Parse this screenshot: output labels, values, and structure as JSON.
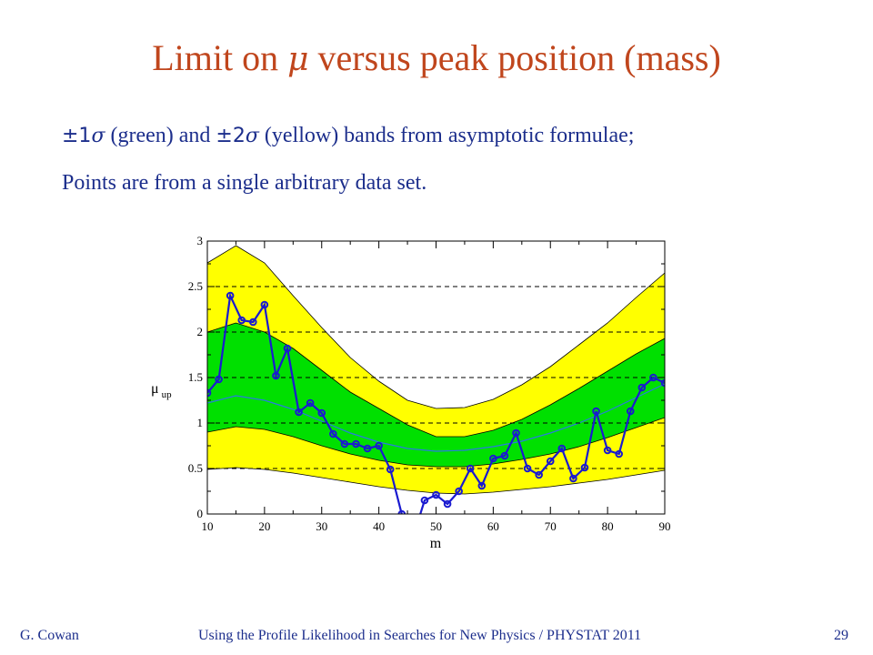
{
  "slide": {
    "title_pre": "Limit on ",
    "title_mu": "μ",
    "title_post": " versus peak position (mass)",
    "line1": {
      "pm1": "±1",
      "sigma1": "σ",
      "mid": " (green) and ",
      "pm2": "±2",
      "sigma2": "σ",
      "post": " (yellow) bands from asymptotic formulae;"
    },
    "line2": "Points are from a single arbitrary data set.",
    "footer_author": "G. Cowan",
    "footer_talk": "Using the Profile Likelihood in Searches for New Physics / PHYSTAT 2011",
    "page_number": "29"
  },
  "colors": {
    "yellow_band": "#ffff00",
    "green_band": "#00e000",
    "median_line": "#2a7ae0",
    "points": "#1a1ad0",
    "title": "#c0461d",
    "text": "#1c2e8c"
  },
  "chart_data": {
    "type": "line",
    "xlabel": "m",
    "ylabel": "μ",
    "ylabel_sub": "up",
    "xlim": [
      10,
      90
    ],
    "ylim": [
      0,
      3
    ],
    "x_ticks": [
      10,
      20,
      30,
      40,
      50,
      60,
      70,
      80,
      90
    ],
    "y_ticks": [
      0,
      0.5,
      1,
      1.5,
      2,
      2.5,
      3
    ],
    "y_tick_labels": [
      "0",
      "0.5",
      "1",
      "1.5",
      "2",
      "2.5",
      "3"
    ],
    "grid": "dashed horizontal lines at major y ticks",
    "bands": {
      "x": [
        10,
        15,
        20,
        25,
        30,
        35,
        40,
        45,
        50,
        55,
        60,
        65,
        70,
        75,
        80,
        85,
        90
      ],
      "minus2": [
        0.49,
        0.51,
        0.49,
        0.45,
        0.4,
        0.35,
        0.3,
        0.26,
        0.23,
        0.22,
        0.24,
        0.27,
        0.3,
        0.34,
        0.38,
        0.43,
        0.48
      ],
      "minus1": [
        0.9,
        0.96,
        0.93,
        0.85,
        0.75,
        0.66,
        0.59,
        0.54,
        0.52,
        0.52,
        0.55,
        0.6,
        0.66,
        0.74,
        0.84,
        0.95,
        1.06
      ],
      "median": [
        1.22,
        1.3,
        1.25,
        1.15,
        1.02,
        0.89,
        0.79,
        0.72,
        0.69,
        0.7,
        0.74,
        0.8,
        0.89,
        1.0,
        1.13,
        1.28,
        1.43
      ],
      "plus1": [
        2.0,
        2.1,
        2.0,
        1.82,
        1.58,
        1.34,
        1.16,
        0.98,
        0.85,
        0.85,
        0.92,
        1.04,
        1.2,
        1.38,
        1.57,
        1.76,
        1.93
      ],
      "plus2": [
        2.76,
        2.95,
        2.76,
        2.4,
        2.05,
        1.72,
        1.46,
        1.25,
        1.16,
        1.17,
        1.26,
        1.42,
        1.62,
        1.86,
        2.1,
        2.38,
        2.65
      ]
    },
    "series": [
      {
        "x": [
          10,
          12,
          14,
          16,
          18,
          20,
          22,
          24,
          26,
          28,
          30,
          32,
          34,
          36,
          38,
          40,
          42,
          44,
          46,
          48,
          50,
          52,
          54,
          56,
          58,
          60,
          62,
          64,
          66,
          68,
          70,
          72,
          74,
          76,
          78,
          80,
          82,
          84,
          86,
          88,
          90
        ],
        "y": [
          1.33,
          1.48,
          2.4,
          2.13,
          2.11,
          2.3,
          1.52,
          1.82,
          1.12,
          1.22,
          1.11,
          0.88,
          0.77,
          0.77,
          0.72,
          0.75,
          0.49,
          0.0,
          -0.25,
          0.15,
          0.21,
          0.11,
          0.25,
          0.5,
          0.31,
          0.61,
          0.64,
          0.89,
          0.5,
          0.43,
          0.58,
          0.72,
          0.39,
          0.51,
          1.13,
          0.7,
          0.66,
          1.13,
          1.39,
          1.5,
          1.44
        ]
      }
    ]
  }
}
